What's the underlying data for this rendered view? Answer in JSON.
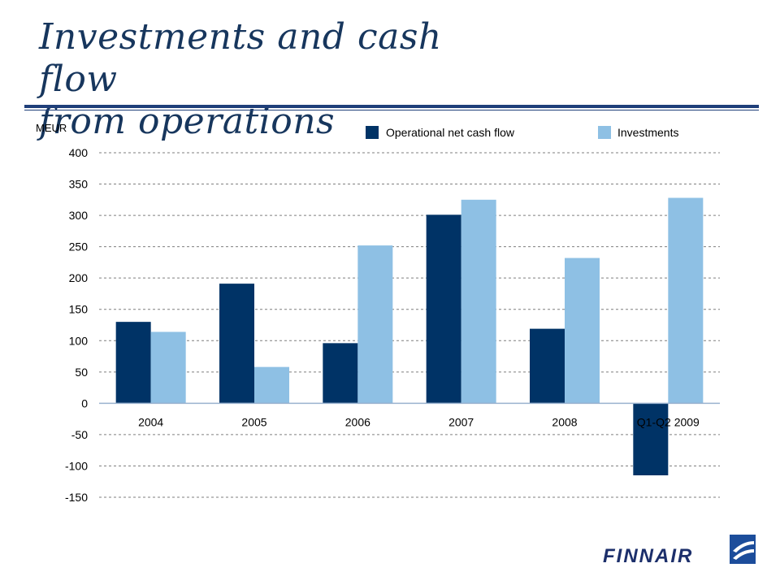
{
  "slide": {
    "title_line1": "Investments and cash flow",
    "title_line2": "from operations"
  },
  "logo": {
    "text": "FINNAIR"
  },
  "colors": {
    "title": "#17365d",
    "rule": "#1f3f7a",
    "series_dark": "#003366",
    "series_light": "#8ec0e4",
    "grid": "#7f7f7f"
  },
  "chart_data": {
    "type": "bar",
    "ylabel": "MEUR",
    "categories": [
      "2004",
      "2005",
      "2006",
      "2007",
      "2008",
      "Q1-Q2 2009"
    ],
    "series": [
      {
        "name": "Operational net cash flow",
        "color": "#003366",
        "values": [
          130,
          191,
          96,
          301,
          119,
          -115
        ]
      },
      {
        "name": "Investments",
        "color": "#8ec0e4",
        "values": [
          114,
          58,
          252,
          325,
          232,
          328
        ]
      }
    ],
    "yticks": [
      400,
      350,
      300,
      250,
      200,
      150,
      100,
      50,
      0,
      -50,
      -100,
      -150
    ],
    "ylim": [
      -150,
      400
    ],
    "grid": true,
    "legend_position": "top-right"
  }
}
